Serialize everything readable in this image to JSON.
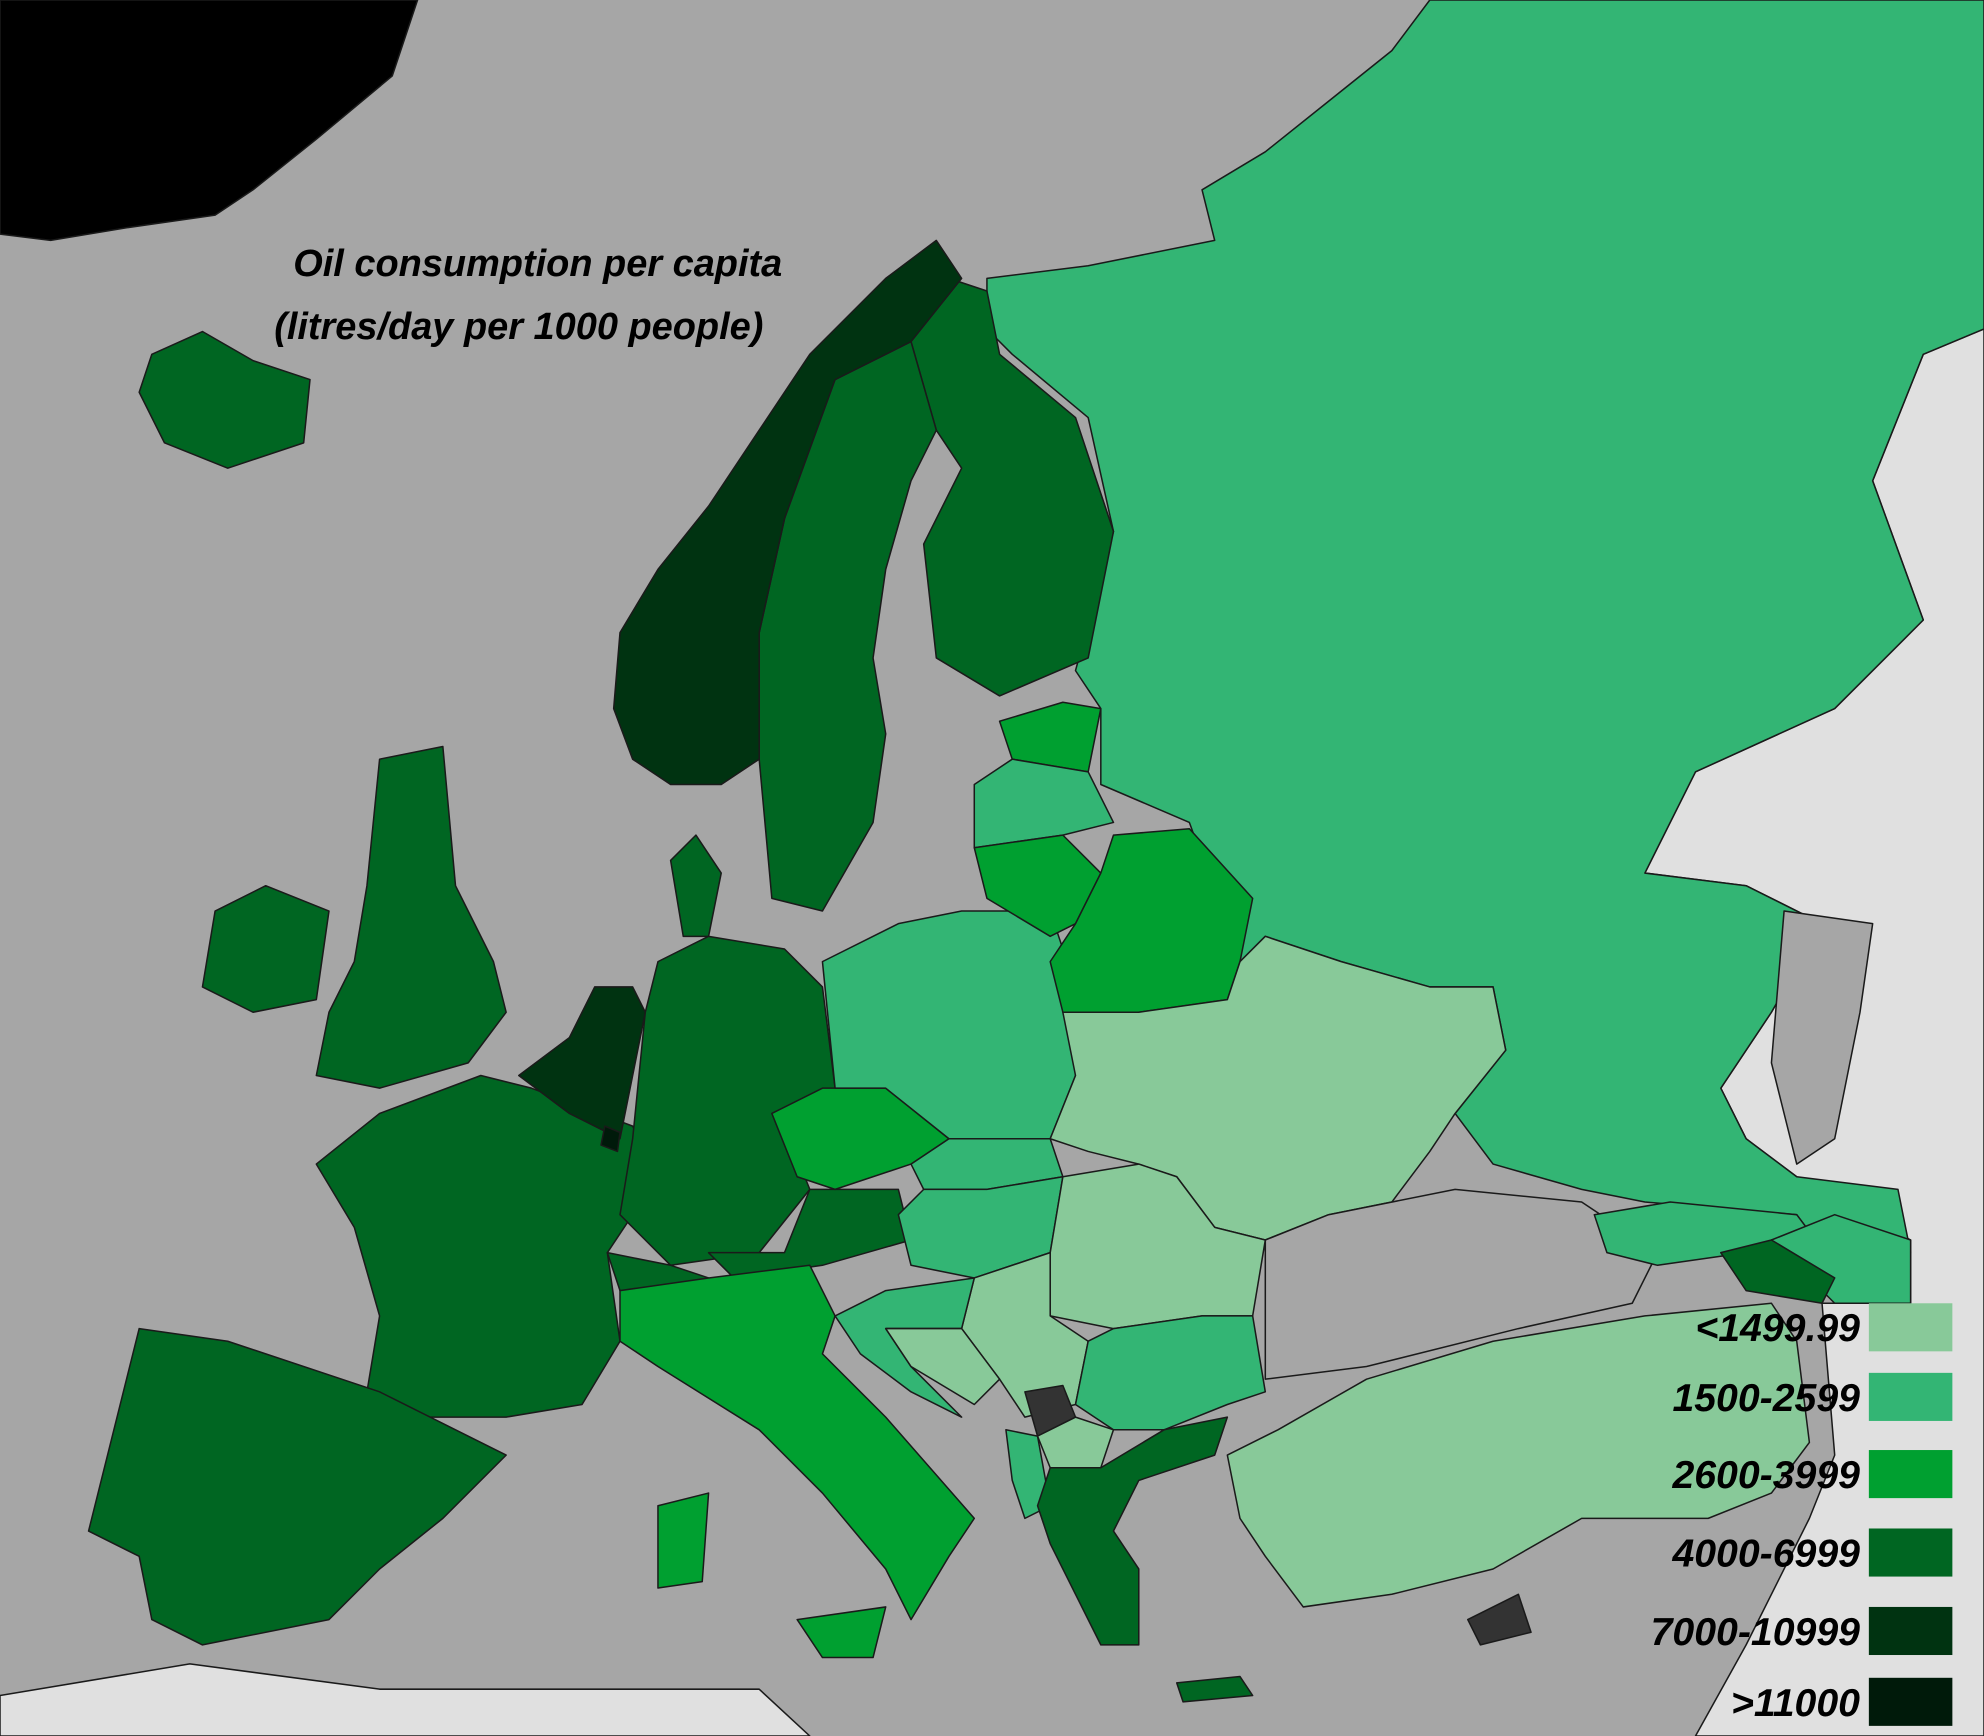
{
  "title_lines": [
    "Oil consumption per capita",
    "(litres/day per 1000 people)"
  ],
  "legend": [
    {
      "label": "<1499.99",
      "color": "#88c999"
    },
    {
      "label": "1500-2599",
      "color": "#33b574"
    },
    {
      "label": "2600-3999",
      "color": "#00a030"
    },
    {
      "label": "4000-6999",
      "color": "#006622"
    },
    {
      "label": "7000-10999",
      "color": "#003311"
    },
    {
      "label": ">11000",
      "color": "#001a0a"
    }
  ]
}
